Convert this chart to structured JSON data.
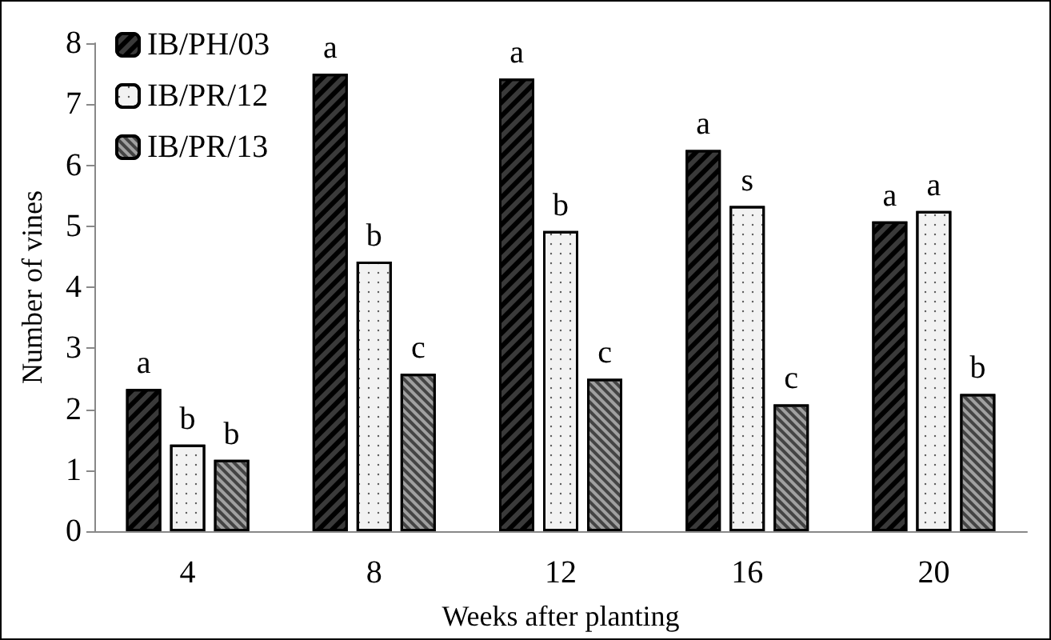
{
  "chart_data": {
    "type": "bar",
    "xlabel": "Weeks after planting",
    "ylabel": "Number of vines",
    "categories": [
      "4",
      "8",
      "12",
      "16",
      "20"
    ],
    "series": [
      {
        "name": "IB/PH/03",
        "color": "#3a3a3a",
        "values": [
          2.33,
          7.5,
          7.42,
          6.25,
          5.08
        ],
        "value_labels": [
          "a",
          "a",
          "a",
          "a",
          "a"
        ]
      },
      {
        "name": "IB/PR/12",
        "color": "#f2f2f2",
        "values": [
          1.42,
          4.42,
          4.92,
          5.33,
          5.25
        ],
        "value_labels": [
          "b",
          "b",
          "b",
          "s",
          "a"
        ]
      },
      {
        "name": "IB/PR/13",
        "color": "#a0a0a0",
        "values": [
          1.17,
          2.58,
          2.5,
          2.08,
          2.25
        ],
        "value_labels": [
          "b",
          "c",
          "c",
          "c",
          "b"
        ]
      }
    ],
    "ylim": [
      0,
      8
    ],
    "yticks": [
      0,
      1,
      2,
      3,
      4,
      5,
      6,
      7,
      8
    ],
    "grid": false,
    "legend": "top left"
  }
}
